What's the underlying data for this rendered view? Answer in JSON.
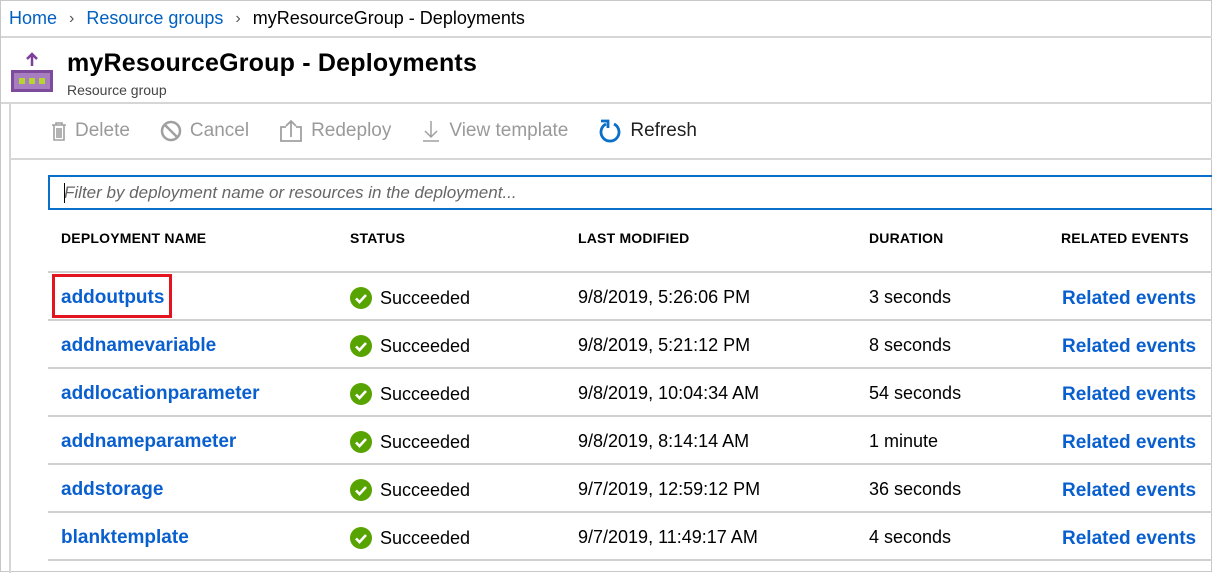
{
  "breadcrumb": {
    "items": [
      "Home",
      "Resource groups"
    ],
    "current": "myResourceGroup - Deployments"
  },
  "header": {
    "title": "myResourceGroup - Deployments",
    "subtitle": "Resource group",
    "icon": "resource-group-icon"
  },
  "toolbar": {
    "delete": "Delete",
    "cancel": "Cancel",
    "redeploy": "Redeploy",
    "view_template": "View template",
    "refresh": "Refresh"
  },
  "filter": {
    "placeholder": "Filter by deployment name or resources in the deployment..."
  },
  "table": {
    "columns": [
      "DEPLOYMENT NAME",
      "STATUS",
      "LAST MODIFIED",
      "DURATION",
      "RELATED EVENTS"
    ],
    "rows": [
      {
        "name": "addoutputs",
        "status": "Succeeded",
        "modified": "9/8/2019, 5:26:06 PM",
        "duration": "3 seconds",
        "events": "Related events",
        "highlighted": true
      },
      {
        "name": "addnamevariable",
        "status": "Succeeded",
        "modified": "9/8/2019, 5:21:12 PM",
        "duration": "8 seconds",
        "events": "Related events"
      },
      {
        "name": "addlocationparameter",
        "status": "Succeeded",
        "modified": "9/8/2019, 10:04:34 AM",
        "duration": "54 seconds",
        "events": "Related events"
      },
      {
        "name": "addnameparameter",
        "status": "Succeeded",
        "modified": "9/8/2019, 8:14:14 AM",
        "duration": "1 minute",
        "events": "Related events"
      },
      {
        "name": "addstorage",
        "status": "Succeeded",
        "modified": "9/7/2019, 12:59:12 PM",
        "duration": "36 seconds",
        "events": "Related events"
      },
      {
        "name": "blanktemplate",
        "status": "Succeeded",
        "modified": "9/7/2019, 11:49:17 AM",
        "duration": "4 seconds",
        "events": "Related events"
      }
    ]
  },
  "colors": {
    "link": "#0a5fcf",
    "success": "#57a300",
    "highlight": "#e3141f",
    "filter_border": "#0a6fc9"
  }
}
